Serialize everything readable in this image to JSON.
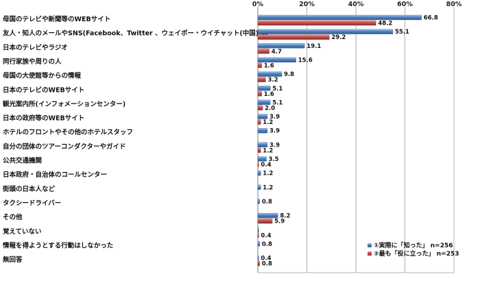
{
  "chart_data": {
    "type": "bar",
    "orientation": "horizontal",
    "xlim": [
      0,
      80
    ],
    "ticks": [
      0,
      20,
      40,
      60,
      80
    ],
    "tick_labels": [
      "0%",
      "20%",
      "40%",
      "60%",
      "80%"
    ],
    "grid": true,
    "legend_position": "bottom-right",
    "categories": [
      "母国のテレビや新聞等のWEBサイト",
      "友人・知人のメールやSNS(Facebook、Twitter 、ウェイボー・ウイチャット(中国))等",
      "日本のテレビやラジオ",
      "同行家族や周りの人",
      "母国の大使館等からの情報",
      "日本のテレビのWEBサイト",
      "観光案内所(インフォメーションセンター)",
      "日本の政府等のWEBサイト",
      "ホテルのフロントやその他のホテルスタッフ",
      "自分の団体のツアーコンダクターやガイド",
      "公共交通機関",
      "日本政府・自治体のコールセンター",
      "街頭の日本人など",
      "タクシードライバー",
      "その他",
      "覚えていない",
      "情報を得ようとする行動はしなかった",
      "無回答"
    ],
    "series": [
      {
        "name": "①実際に「知った」 n=256",
        "color": "#4f81bd",
        "values": [
          66.8,
          55.1,
          19.1,
          15.6,
          9.8,
          5.1,
          5.1,
          3.9,
          3.9,
          3.9,
          3.5,
          1.2,
          1.2,
          0.8,
          8.2,
          0.4,
          0.8,
          0.4
        ],
        "labels": [
          "66.8",
          "55.1",
          "19.1",
          "15.6",
          "9.8",
          "5.1",
          "5.1",
          "3.9",
          "3.9",
          "3.9",
          "3.5",
          "1.2",
          "1.2",
          "0.8",
          "8.2",
          "0.4",
          "0.8",
          "0.4"
        ],
        "label_shown": [
          true,
          true,
          true,
          true,
          true,
          true,
          true,
          true,
          true,
          true,
          true,
          true,
          true,
          true,
          true,
          false,
          true,
          true
        ]
      },
      {
        "name": "②最も「役に立った」 n=253",
        "color": "#c0504d",
        "values": [
          48.2,
          29.2,
          4.7,
          1.6,
          3.2,
          1.6,
          2.0,
          1.2,
          0.0,
          1.2,
          0.4,
          0.0,
          0.0,
          0.0,
          5.9,
          0.4,
          0.0,
          0.8
        ],
        "labels": [
          "48.2",
          "29.2",
          "4.7",
          "1.6",
          "3.2",
          "1.6",
          "2.0",
          "1.2",
          "",
          "1.2",
          "0.4",
          "",
          "",
          "",
          "5.9",
          "0.4",
          "",
          "0.8"
        ],
        "label_shown": [
          true,
          true,
          true,
          true,
          true,
          true,
          true,
          true,
          false,
          true,
          true,
          false,
          false,
          false,
          true,
          true,
          false,
          true
        ]
      }
    ]
  }
}
